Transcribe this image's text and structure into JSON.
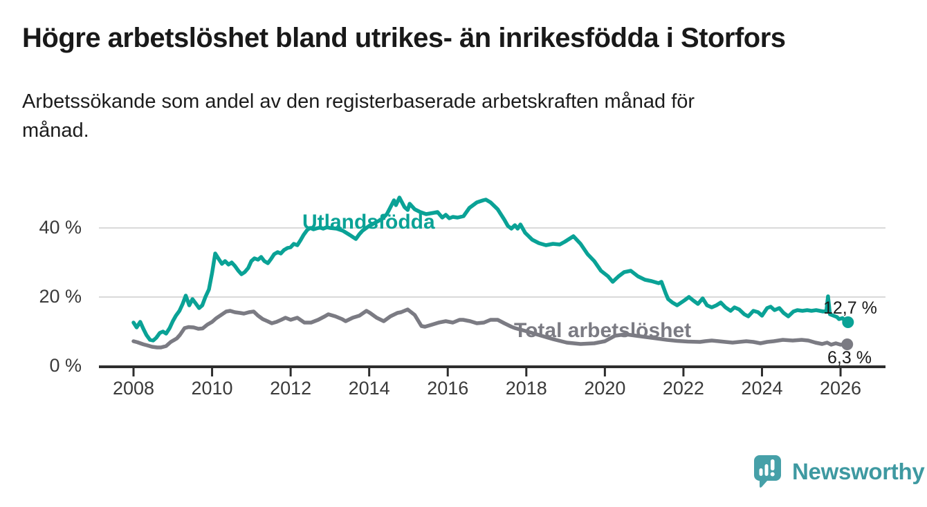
{
  "header": {
    "title": "Högre arbetslöshet bland utrikes- än inrikesfödda i Storfors",
    "subtitle_line1": "Arbetssökande som andel av den registerbaserade arbetskraften månad för",
    "subtitle_line2": "månad."
  },
  "branding": {
    "logo_name": "newsworthy-speech-bubble-bars-logo",
    "logo_text": "Newsworthy",
    "logo_color": "#3e99a1",
    "bubble_color": "#46a0a8"
  },
  "chart_data": {
    "type": "line",
    "title": "Högre arbetslöshet bland utrikes- än inrikesfödda i Storfors",
    "subtitle": "Arbetssökande som andel av den registerbaserade arbetskraften månad för månad.",
    "grid": "horizontal-only",
    "colors": {
      "grid": "#d9d9d9",
      "axis": "#2d2d2d",
      "tick_text": "#3a3a3a"
    },
    "x_axis": {
      "ticks": [
        2008,
        2010,
        2012,
        2014,
        2016,
        2018,
        2020,
        2022,
        2024,
        2026
      ],
      "unit": "year"
    },
    "y_axis": {
      "ticks": [
        {
          "value": 0,
          "label": "0 %"
        },
        {
          "value": 20,
          "label": "20 %"
        },
        {
          "value": 40,
          "label": "40 %"
        }
      ],
      "range": [
        0,
        52
      ]
    },
    "series": [
      {
        "name": "Utlandsfödda",
        "color": "#0aa296",
        "end_label": "12,7 %",
        "end_value": 12.7,
        "points": [
          [
            2008.0,
            12.6
          ],
          [
            2008.08,
            11.2
          ],
          [
            2008.17,
            12.8
          ],
          [
            2008.25,
            10.8
          ],
          [
            2008.33,
            9.0
          ],
          [
            2008.42,
            7.6
          ],
          [
            2008.5,
            7.4
          ],
          [
            2008.58,
            8.2
          ],
          [
            2008.67,
            9.6
          ],
          [
            2008.75,
            10.0
          ],
          [
            2008.83,
            9.4
          ],
          [
            2008.92,
            11.0
          ],
          [
            2009.0,
            13.0
          ],
          [
            2009.08,
            14.6
          ],
          [
            2009.17,
            16.0
          ],
          [
            2009.25,
            18.0
          ],
          [
            2009.33,
            20.4
          ],
          [
            2009.42,
            17.6
          ],
          [
            2009.5,
            19.4
          ],
          [
            2009.58,
            18.2
          ],
          [
            2009.67,
            16.8
          ],
          [
            2009.75,
            17.6
          ],
          [
            2009.83,
            20.0
          ],
          [
            2009.92,
            22.2
          ],
          [
            2010.0,
            27.0
          ],
          [
            2010.08,
            32.6
          ],
          [
            2010.17,
            31.0
          ],
          [
            2010.25,
            29.6
          ],
          [
            2010.33,
            30.4
          ],
          [
            2010.42,
            29.4
          ],
          [
            2010.5,
            30.0
          ],
          [
            2010.58,
            29.0
          ],
          [
            2010.67,
            27.6
          ],
          [
            2010.75,
            26.6
          ],
          [
            2010.83,
            27.2
          ],
          [
            2010.92,
            28.4
          ],
          [
            2011.0,
            30.4
          ],
          [
            2011.08,
            31.2
          ],
          [
            2011.17,
            30.8
          ],
          [
            2011.25,
            31.6
          ],
          [
            2011.33,
            30.4
          ],
          [
            2011.42,
            29.8
          ],
          [
            2011.5,
            31.0
          ],
          [
            2011.58,
            32.4
          ],
          [
            2011.67,
            33.0
          ],
          [
            2011.75,
            32.6
          ],
          [
            2011.83,
            33.6
          ],
          [
            2011.92,
            34.2
          ],
          [
            2012.0,
            34.4
          ],
          [
            2012.08,
            35.4
          ],
          [
            2012.17,
            35.0
          ],
          [
            2012.25,
            36.4
          ],
          [
            2012.33,
            38.0
          ],
          [
            2012.42,
            39.4
          ],
          [
            2012.5,
            40.0
          ],
          [
            2012.58,
            39.6
          ],
          [
            2012.67,
            39.9
          ],
          [
            2012.75,
            40.1
          ],
          [
            2012.83,
            39.8
          ],
          [
            2012.92,
            40.2
          ],
          [
            2013.0,
            40.0
          ],
          [
            2013.17,
            39.8
          ],
          [
            2013.33,
            39.2
          ],
          [
            2013.5,
            38.0
          ],
          [
            2013.66,
            36.8
          ],
          [
            2013.75,
            38.2
          ],
          [
            2013.83,
            39.2
          ],
          [
            2014.0,
            40.6
          ],
          [
            2014.17,
            41.6
          ],
          [
            2014.33,
            42.6
          ],
          [
            2014.45,
            44.0
          ],
          [
            2014.55,
            46.2
          ],
          [
            2014.63,
            48.0
          ],
          [
            2014.68,
            46.6
          ],
          [
            2014.77,
            48.8
          ],
          [
            2014.9,
            46.0
          ],
          [
            2014.98,
            45.2
          ],
          [
            2015.03,
            47.0
          ],
          [
            2015.16,
            45.4
          ],
          [
            2015.3,
            44.6
          ],
          [
            2015.45,
            44.0
          ],
          [
            2015.55,
            44.2
          ],
          [
            2015.65,
            44.4
          ],
          [
            2015.74,
            44.6
          ],
          [
            2015.86,
            43.0
          ],
          [
            2015.95,
            43.8
          ],
          [
            2016.04,
            42.8
          ],
          [
            2016.13,
            43.2
          ],
          [
            2016.25,
            43.0
          ],
          [
            2016.4,
            43.4
          ],
          [
            2016.55,
            45.8
          ],
          [
            2016.74,
            47.4
          ],
          [
            2016.9,
            48.0
          ],
          [
            2016.97,
            48.2
          ],
          [
            2017.09,
            47.4
          ],
          [
            2017.27,
            45.4
          ],
          [
            2017.44,
            42.4
          ],
          [
            2017.53,
            40.6
          ],
          [
            2017.62,
            39.8
          ],
          [
            2017.71,
            40.8
          ],
          [
            2017.78,
            39.8
          ],
          [
            2017.85,
            41.0
          ],
          [
            2017.97,
            38.6
          ],
          [
            2018.15,
            36.6
          ],
          [
            2018.32,
            35.6
          ],
          [
            2018.5,
            35.0
          ],
          [
            2018.68,
            35.4
          ],
          [
            2018.85,
            35.2
          ],
          [
            2018.98,
            36.0
          ],
          [
            2019.2,
            37.6
          ],
          [
            2019.38,
            35.4
          ],
          [
            2019.56,
            32.4
          ],
          [
            2019.73,
            30.4
          ],
          [
            2019.9,
            27.6
          ],
          [
            2020.08,
            26.0
          ],
          [
            2020.2,
            24.4
          ],
          [
            2020.35,
            26.0
          ],
          [
            2020.49,
            27.2
          ],
          [
            2020.66,
            27.6
          ],
          [
            2020.84,
            26.0
          ],
          [
            2021.02,
            25.0
          ],
          [
            2021.19,
            24.6
          ],
          [
            2021.37,
            24.0
          ],
          [
            2021.44,
            24.4
          ],
          [
            2021.55,
            21.0
          ],
          [
            2021.61,
            19.4
          ],
          [
            2021.72,
            18.4
          ],
          [
            2021.84,
            17.6
          ],
          [
            2022.02,
            19.0
          ],
          [
            2022.14,
            20.0
          ],
          [
            2022.25,
            19.0
          ],
          [
            2022.37,
            18.0
          ],
          [
            2022.49,
            19.6
          ],
          [
            2022.6,
            17.6
          ],
          [
            2022.72,
            17.0
          ],
          [
            2022.84,
            17.6
          ],
          [
            2022.95,
            18.4
          ],
          [
            2023.07,
            17.0
          ],
          [
            2023.2,
            16.0
          ],
          [
            2023.3,
            17.0
          ],
          [
            2023.42,
            16.4
          ],
          [
            2023.55,
            15.0
          ],
          [
            2023.65,
            14.4
          ],
          [
            2023.78,
            16.0
          ],
          [
            2023.9,
            15.6
          ],
          [
            2024.0,
            14.6
          ],
          [
            2024.13,
            16.8
          ],
          [
            2024.22,
            17.2
          ],
          [
            2024.32,
            16.2
          ],
          [
            2024.44,
            16.8
          ],
          [
            2024.55,
            15.4
          ],
          [
            2024.67,
            14.4
          ],
          [
            2024.8,
            15.8
          ],
          [
            2024.9,
            16.2
          ],
          [
            2025.03,
            16.0
          ],
          [
            2025.15,
            16.2
          ],
          [
            2025.26,
            16.0
          ],
          [
            2025.38,
            16.2
          ],
          [
            2025.56,
            15.8
          ],
          [
            2025.64,
            16.0
          ],
          [
            2025.68,
            20.2
          ],
          [
            2025.73,
            15.0
          ],
          [
            2025.82,
            14.6
          ],
          [
            2025.91,
            14.2
          ],
          [
            2025.96,
            13.6
          ],
          [
            2026.05,
            13.9
          ],
          [
            2026.12,
            12.9
          ],
          [
            2026.19,
            12.7
          ]
        ]
      },
      {
        "name": "Total arbetslöshet",
        "color": "#7b7b83",
        "end_label": "6,3 %",
        "end_value": 6.3,
        "points": [
          [
            2008.0,
            7.2
          ],
          [
            2008.1,
            6.9
          ],
          [
            2008.25,
            6.3
          ],
          [
            2008.35,
            6.0
          ],
          [
            2008.47,
            5.6
          ],
          [
            2008.6,
            5.4
          ],
          [
            2008.7,
            5.4
          ],
          [
            2008.83,
            5.8
          ],
          [
            2008.95,
            7.0
          ],
          [
            2009.1,
            8.0
          ],
          [
            2009.18,
            9.0
          ],
          [
            2009.3,
            11.0
          ],
          [
            2009.4,
            11.3
          ],
          [
            2009.53,
            11.2
          ],
          [
            2009.65,
            10.8
          ],
          [
            2009.76,
            10.9
          ],
          [
            2009.88,
            12.0
          ],
          [
            2010.0,
            12.8
          ],
          [
            2010.1,
            13.8
          ],
          [
            2010.23,
            14.8
          ],
          [
            2010.36,
            15.8
          ],
          [
            2010.46,
            16.0
          ],
          [
            2010.58,
            15.6
          ],
          [
            2010.71,
            15.4
          ],
          [
            2010.81,
            15.2
          ],
          [
            2010.94,
            15.6
          ],
          [
            2011.06,
            15.8
          ],
          [
            2011.17,
            14.6
          ],
          [
            2011.29,
            13.6
          ],
          [
            2011.41,
            13.0
          ],
          [
            2011.52,
            12.4
          ],
          [
            2011.64,
            12.8
          ],
          [
            2011.76,
            13.4
          ],
          [
            2011.87,
            14.0
          ],
          [
            2012.0,
            13.4
          ],
          [
            2012.17,
            14.0
          ],
          [
            2012.35,
            12.6
          ],
          [
            2012.52,
            12.6
          ],
          [
            2012.7,
            13.4
          ],
          [
            2012.87,
            14.4
          ],
          [
            2012.96,
            15.0
          ],
          [
            2013.14,
            14.4
          ],
          [
            2013.31,
            13.6
          ],
          [
            2013.4,
            13.0
          ],
          [
            2013.58,
            14.0
          ],
          [
            2013.75,
            14.6
          ],
          [
            2013.93,
            16.0
          ],
          [
            2014.02,
            15.4
          ],
          [
            2014.19,
            14.0
          ],
          [
            2014.37,
            13.0
          ],
          [
            2014.54,
            14.4
          ],
          [
            2014.72,
            15.4
          ],
          [
            2014.81,
            15.6
          ],
          [
            2014.98,
            16.4
          ],
          [
            2015.16,
            14.8
          ],
          [
            2015.33,
            11.6
          ],
          [
            2015.42,
            11.4
          ],
          [
            2015.6,
            12.0
          ],
          [
            2015.77,
            12.6
          ],
          [
            2015.95,
            13.0
          ],
          [
            2016.13,
            12.6
          ],
          [
            2016.3,
            13.4
          ],
          [
            2016.39,
            13.4
          ],
          [
            2016.57,
            13.0
          ],
          [
            2016.74,
            12.4
          ],
          [
            2016.92,
            12.6
          ],
          [
            2017.09,
            13.4
          ],
          [
            2017.27,
            13.4
          ],
          [
            2017.44,
            12.4
          ],
          [
            2017.62,
            11.4
          ],
          [
            2017.71,
            11.0
          ],
          [
            2017.97,
            10.2
          ],
          [
            2018.32,
            9.0
          ],
          [
            2018.68,
            7.8
          ],
          [
            2019.03,
            6.8
          ],
          [
            2019.38,
            6.4
          ],
          [
            2019.73,
            6.6
          ],
          [
            2020.0,
            7.2
          ],
          [
            2020.26,
            8.8
          ],
          [
            2020.53,
            9.2
          ],
          [
            2020.79,
            8.8
          ],
          [
            2021.05,
            8.4
          ],
          [
            2021.32,
            8.0
          ],
          [
            2021.58,
            7.6
          ],
          [
            2021.84,
            7.3
          ],
          [
            2022.11,
            7.1
          ],
          [
            2022.42,
            7.0
          ],
          [
            2022.55,
            7.2
          ],
          [
            2022.72,
            7.4
          ],
          [
            2022.9,
            7.2
          ],
          [
            2023.07,
            7.0
          ],
          [
            2023.25,
            6.8
          ],
          [
            2023.42,
            7.0
          ],
          [
            2023.6,
            7.2
          ],
          [
            2023.78,
            7.0
          ],
          [
            2023.96,
            6.6
          ],
          [
            2024.13,
            7.0
          ],
          [
            2024.3,
            7.2
          ],
          [
            2024.53,
            7.6
          ],
          [
            2024.78,
            7.4
          ],
          [
            2025.01,
            7.6
          ],
          [
            2025.18,
            7.4
          ],
          [
            2025.36,
            6.8
          ],
          [
            2025.53,
            6.4
          ],
          [
            2025.66,
            6.8
          ],
          [
            2025.76,
            6.2
          ],
          [
            2025.88,
            6.6
          ],
          [
            2026.0,
            6.2
          ],
          [
            2026.17,
            6.3
          ]
        ]
      }
    ]
  }
}
